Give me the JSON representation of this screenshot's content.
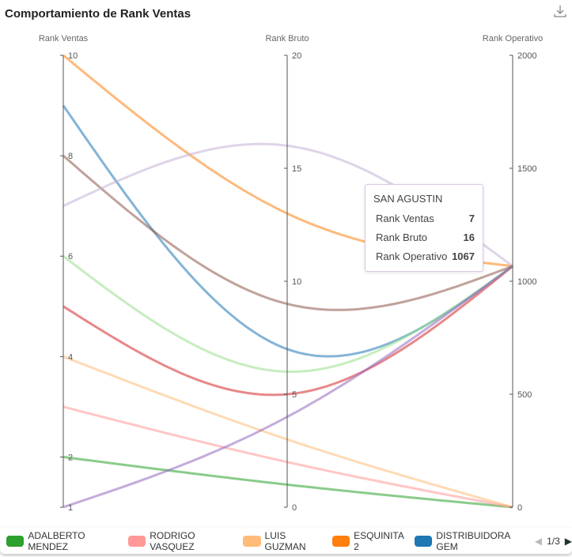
{
  "chart_data": {
    "type": "parallel-coordinates",
    "title": "Comportamiento de Rank Ventas",
    "axes": [
      {
        "label": "Rank Ventas",
        "range": [
          1,
          10
        ],
        "ticks": [
          1,
          2,
          4,
          6,
          8,
          10
        ]
      },
      {
        "label": "Rank Bruto",
        "range": [
          0,
          20
        ],
        "ticks": [
          0,
          5,
          10,
          15,
          20
        ]
      },
      {
        "label": "Rank Operativo",
        "range": [
          0,
          2000
        ],
        "ticks": [
          0,
          500,
          1000,
          1500,
          2000
        ]
      }
    ],
    "series": [
      {
        "name": "ADALBERTO MENDEZ",
        "color": "#2ca02c",
        "values": [
          2,
          1,
          0
        ]
      },
      {
        "name": "RODRIGO VASQUEZ",
        "color": "#ff9896",
        "values": [
          3,
          2,
          0
        ]
      },
      {
        "name": "LUIS GUZMAN",
        "color": "#ffbb78",
        "values": [
          4,
          3,
          0
        ]
      },
      {
        "name": "ESQUINITA 2",
        "color": "#ff7f0e",
        "values": [
          10,
          13,
          1067
        ]
      },
      {
        "name": "DISTRIBUIDORA GEM",
        "color": "#1f77b4",
        "values": [
          9,
          7,
          1067
        ]
      },
      {
        "color": "#d62728",
        "values": [
          5,
          5,
          1067
        ]
      },
      {
        "color": "#98df8a",
        "values": [
          6,
          6,
          1067
        ]
      },
      {
        "color": "#8c564b",
        "values": [
          8,
          9,
          1067
        ]
      },
      {
        "name": "SAN AGUSTIN",
        "color": "#c5b0d5",
        "values": [
          7,
          16,
          1067
        ]
      },
      {
        "color": "#9467bd",
        "values": [
          1,
          4,
          1067
        ]
      }
    ],
    "tooltip": {
      "title": "SAN AGUSTIN",
      "rows": [
        {
          "label": "Rank Ventas",
          "value": "7"
        },
        {
          "label": "Rank Bruto",
          "value": "16"
        },
        {
          "label": "Rank Operativo",
          "value": "1067"
        }
      ]
    },
    "legend": {
      "placement": "bottom",
      "items": [
        "ADALBERTO MENDEZ",
        "RODRIGO VASQUEZ",
        "LUIS GUZMAN",
        "ESQUINITA 2",
        "DISTRIBUIDORA GEM"
      ],
      "colors": [
        "#2ca02c",
        "#ff9896",
        "#ffbb78",
        "#ff7f0e",
        "#1f77b4"
      ],
      "page": "1/3"
    }
  },
  "icons": {
    "download": "download-icon",
    "prev": "caret-left-icon",
    "next": "caret-right-icon"
  }
}
